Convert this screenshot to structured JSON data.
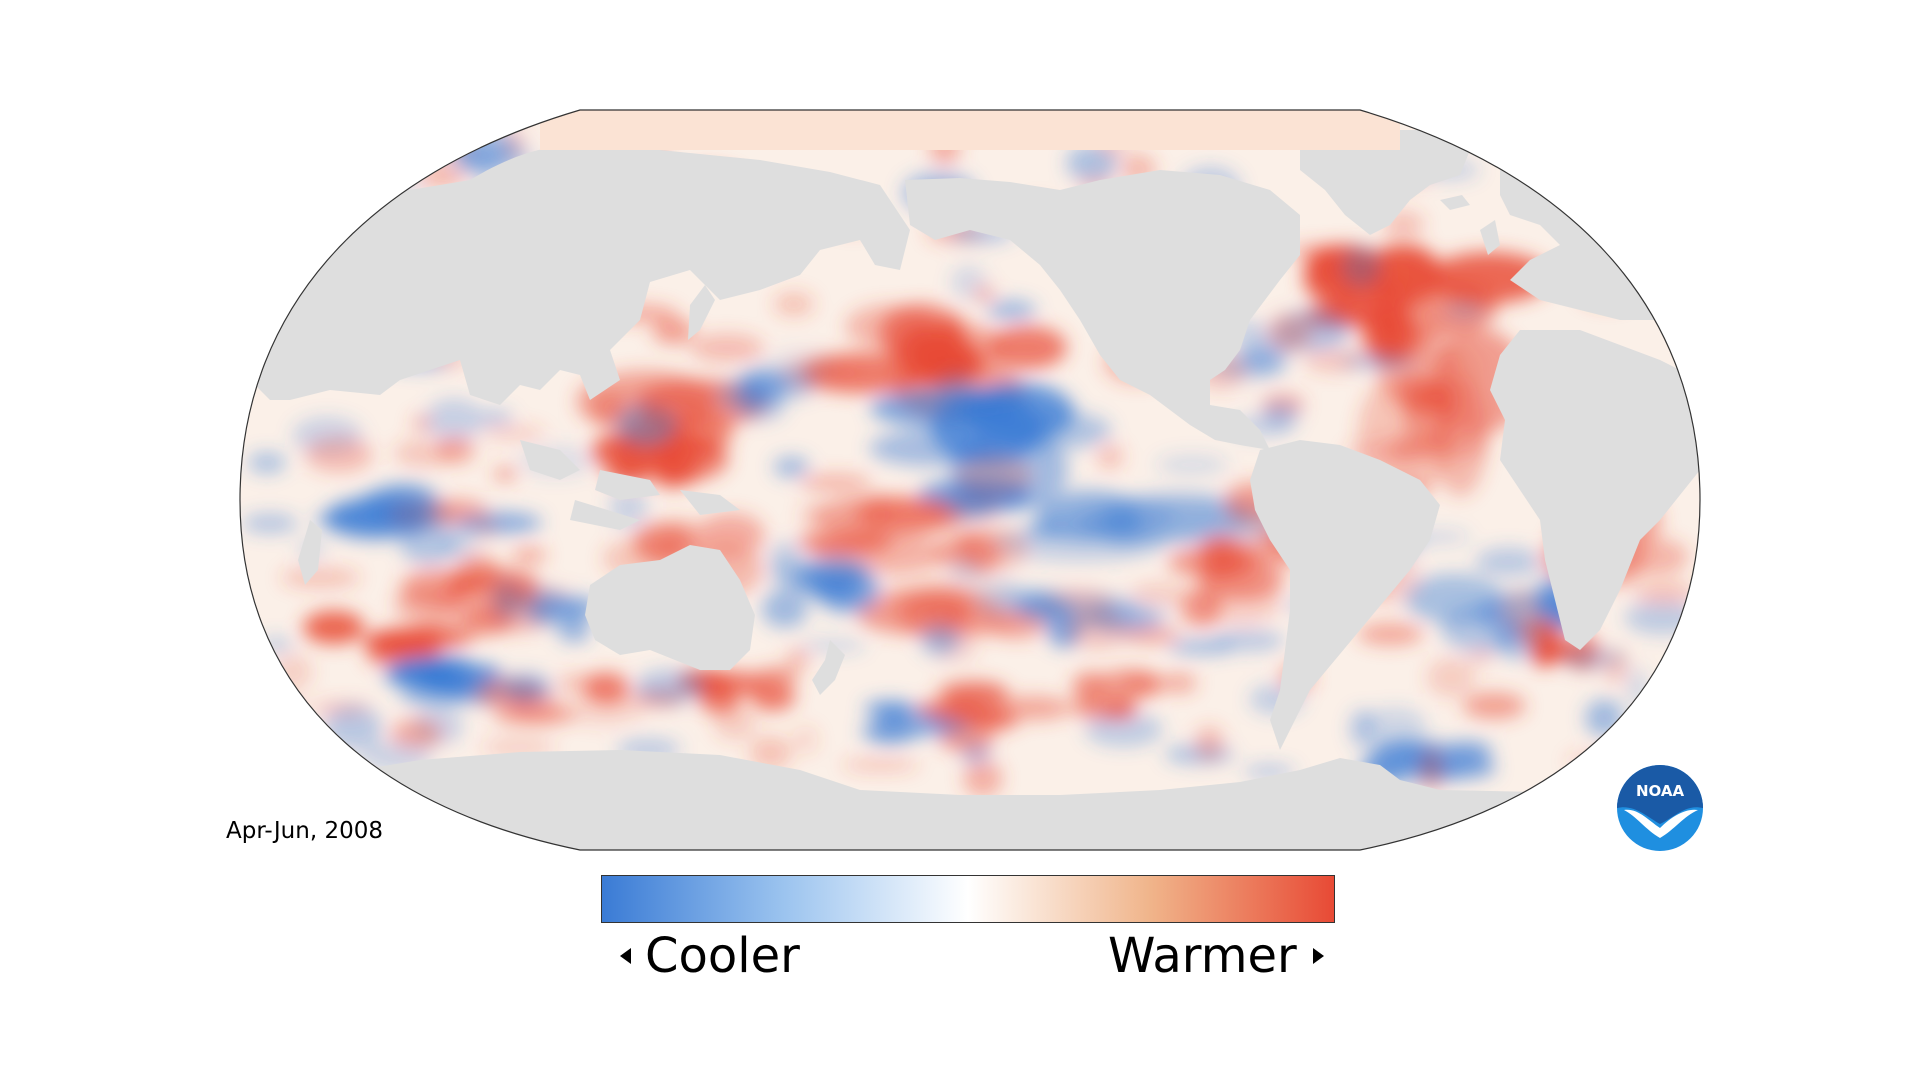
{
  "period_label": "Apr-Jun, 2008",
  "legend": {
    "cooler_label": "Cooler",
    "warmer_label": "Warmer",
    "gradient_colors": [
      "#3a7bd5",
      "#9cc4ef",
      "#ffffff",
      "#f0b48a",
      "#e84a35"
    ]
  },
  "logo": {
    "text": "NOAA",
    "colors": {
      "sky": "#1a5aa6",
      "ocean": "#1f8fe0",
      "bird": "#ffffff"
    }
  },
  "map": {
    "projection": "robinson-pacific-centered",
    "land_color": "#dedede",
    "neutral_ocean_color": "#ffffff",
    "cool_color": "#3a7bd5",
    "warm_color": "#e84a35"
  }
}
